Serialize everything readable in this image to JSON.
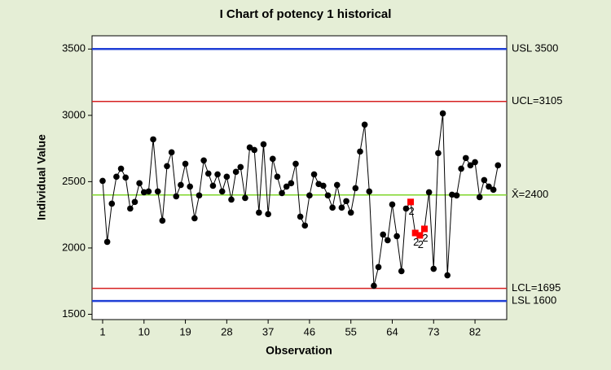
{
  "chart_data": {
    "type": "line",
    "title": "I Chart of potency 1 historical",
    "x_label": "Observation",
    "y_label": "Individual Value",
    "x": [
      1,
      2,
      3,
      4,
      5,
      6,
      7,
      8,
      9,
      10,
      11,
      12,
      13,
      14,
      15,
      16,
      17,
      18,
      19,
      20,
      21,
      22,
      23,
      24,
      25,
      26,
      27,
      28,
      29,
      30,
      31,
      32,
      33,
      34,
      35,
      36,
      37,
      38,
      39,
      40,
      41,
      42,
      43,
      44,
      45,
      46,
      47,
      48,
      49,
      50,
      51,
      52,
      53,
      54,
      55,
      56,
      57,
      58,
      59,
      60,
      61,
      62,
      63,
      64,
      65,
      66,
      67,
      68,
      69,
      70,
      71,
      72,
      73,
      74,
      75,
      76,
      77,
      78,
      79,
      80,
      81,
      82,
      83,
      84,
      85,
      86,
      87
    ],
    "series": [
      {
        "name": "potency 1 historical",
        "color": "#000000",
        "values": [
          2506,
          2046,
          2334,
          2537,
          2598,
          2531,
          2297,
          2347,
          2488,
          2420,
          2426,
          2819,
          2426,
          2206,
          2617,
          2721,
          2389,
          2475,
          2635,
          2463,
          2224,
          2396,
          2660,
          2561,
          2469,
          2555,
          2426,
          2537,
          2365,
          2574,
          2610,
          2377,
          2758,
          2739,
          2267,
          2782,
          2255,
          2672,
          2537,
          2414,
          2463,
          2488,
          2635,
          2236,
          2169,
          2396,
          2555,
          2482,
          2469,
          2396,
          2304,
          2475,
          2304,
          2353,
          2267,
          2451,
          2727,
          2930,
          2426,
          1715,
          1856,
          2101,
          2058,
          2328,
          2089,
          1825,
          2297,
          2347,
          2113,
          2095,
          2144,
          2420,
          1843,
          2715,
          3015,
          1794,
          2402,
          2396,
          2598,
          2678,
          2623,
          2647,
          2383,
          2512,
          2463,
          2439,
          2623
        ],
        "flags": [
          null,
          null,
          null,
          null,
          null,
          null,
          null,
          null,
          null,
          null,
          null,
          null,
          null,
          null,
          null,
          null,
          null,
          null,
          null,
          null,
          null,
          null,
          null,
          null,
          null,
          null,
          null,
          null,
          null,
          null,
          null,
          null,
          null,
          null,
          null,
          null,
          null,
          null,
          null,
          null,
          null,
          null,
          null,
          null,
          null,
          null,
          null,
          null,
          null,
          null,
          null,
          null,
          null,
          null,
          null,
          null,
          null,
          null,
          null,
          null,
          null,
          null,
          null,
          null,
          null,
          null,
          null,
          "2",
          "2",
          "2",
          "2",
          null,
          null,
          null,
          null,
          null,
          null,
          null,
          null,
          null,
          null,
          null,
          null,
          null,
          null,
          null,
          null
        ],
        "flag_color": "#ff0000"
      }
    ],
    "reference_lines": [
      {
        "label": "USL 3500",
        "value": 3500,
        "color": "#1f3fd6"
      },
      {
        "label": "UCL=3105",
        "value": 3105,
        "color": "#d62020"
      },
      {
        "label": "X̄=2400",
        "value": 2400,
        "color": "#7fd62a"
      },
      {
        "label": "LCL=1695",
        "value": 1695,
        "color": "#d62020"
      },
      {
        "label": "LSL 1600",
        "value": 1600,
        "color": "#1f3fd6"
      }
    ],
    "xlim": [
      -1.3,
      88.9
    ],
    "ylim": [
      1460,
      3600
    ],
    "xticks": [
      1,
      10,
      19,
      28,
      37,
      46,
      55,
      64,
      73,
      82
    ],
    "yticks": [
      1500,
      2000,
      2500,
      3000,
      3500
    ],
    "grid": false
  }
}
